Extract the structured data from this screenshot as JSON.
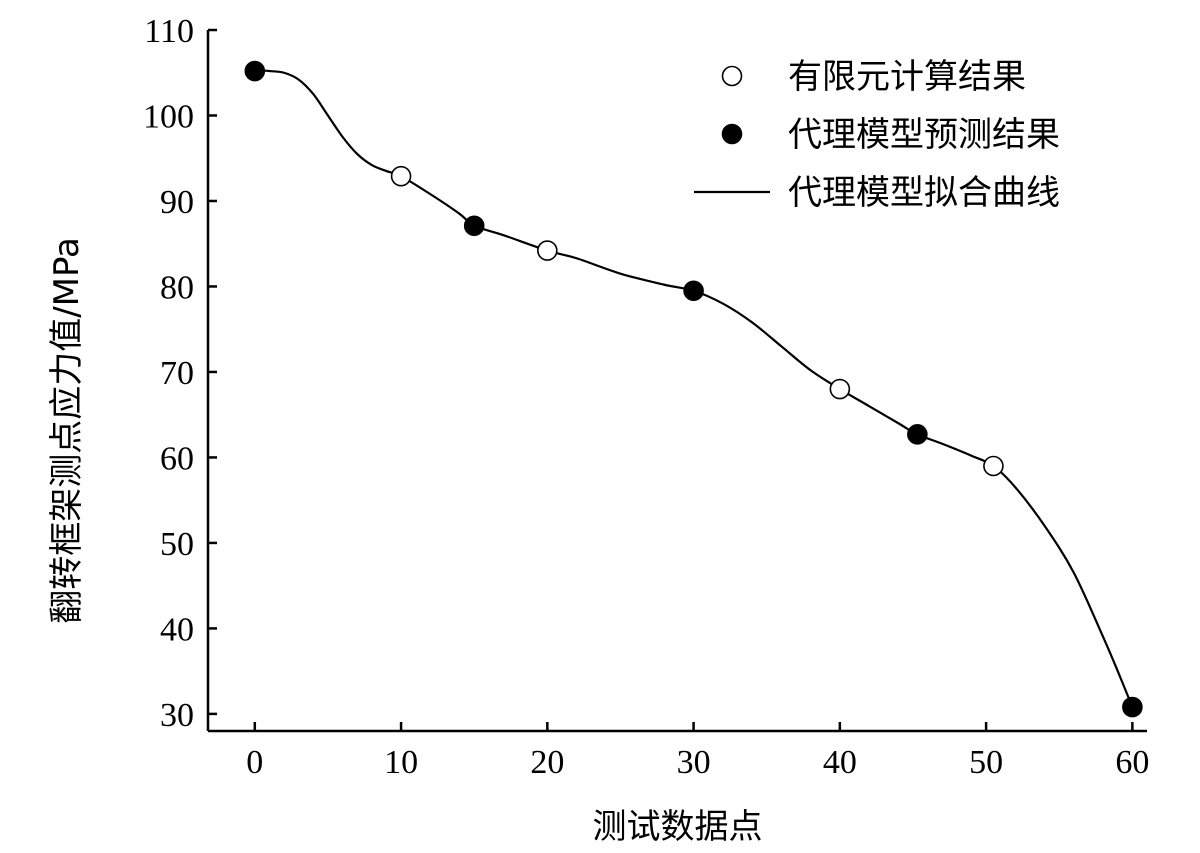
{
  "chart_data": {
    "type": "scatter",
    "xlabel": "测试数据点",
    "ylabel": "翻转框架测点应力值/MPa",
    "xlim": [
      -3.2,
      61
    ],
    "ylim": [
      28,
      110
    ],
    "xticks": [
      0,
      10,
      20,
      30,
      40,
      50,
      60
    ],
    "yticks": [
      30,
      40,
      50,
      60,
      70,
      80,
      90,
      100,
      110
    ],
    "legend_position": "top-right",
    "series": [
      {
        "name": "有限元计算结果",
        "marker": "open-circle",
        "x": [
          10,
          20,
          40,
          50.5
        ],
        "y": [
          92.9,
          84.2,
          68.0,
          59.0
        ]
      },
      {
        "name": "代理模型预测结果",
        "marker": "filled-circle",
        "x": [
          0,
          15,
          30,
          45.3,
          60
        ],
        "y": [
          105.2,
          87.1,
          79.5,
          62.7,
          30.8
        ]
      },
      {
        "name": "代理模型拟合曲线",
        "marker": "line",
        "x": [
          0,
          1,
          2,
          3,
          4,
          5,
          6,
          7,
          8,
          9,
          10,
          12,
          14,
          15,
          17,
          20,
          22,
          25,
          28,
          30,
          32,
          34,
          36,
          38,
          40,
          42,
          44,
          45.3,
          47,
          49,
          50.5,
          52,
          54,
          56,
          58,
          59,
          60
        ],
        "y": [
          105.3,
          105.2,
          105.0,
          104.2,
          102.5,
          100.0,
          97.5,
          95.5,
          94.2,
          93.5,
          92.9,
          90.8,
          88.5,
          87.1,
          86.0,
          84.2,
          83.3,
          81.5,
          80.2,
          79.5,
          78.0,
          75.8,
          73.0,
          70.2,
          68.0,
          66.0,
          64.0,
          62.7,
          61.6,
          60.2,
          59.0,
          56.5,
          52.0,
          46.5,
          39.0,
          35.0,
          30.8
        ]
      }
    ]
  }
}
